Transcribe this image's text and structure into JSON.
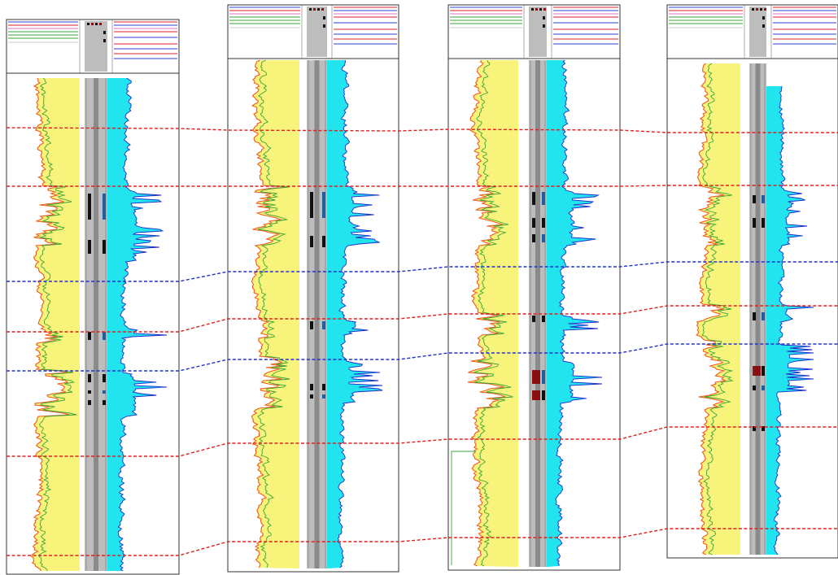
{
  "colors": {
    "gr_fill": "#f8f37a",
    "gr_curve": "#ee5a1c",
    "gr_baseline": "#3aa33a",
    "res_fill": "#22e4ee",
    "res_curve": "#1f2ccc",
    "depth_track": "#bdbdbd",
    "depth_track_dark": "#8a8a8a",
    "marker_red": "#e02020",
    "marker_blue": "#2233cc",
    "perf": "#111111",
    "perf_alt": "#8a1010",
    "header_red": "#e21c2c",
    "header_blue": "#2b3fd9",
    "header_green": "#3aa33a",
    "header_pink": "#e070c0"
  },
  "wells": [
    {
      "id": "well-1"
    },
    {
      "id": "well-2"
    },
    {
      "id": "well-3"
    },
    {
      "id": "well-4"
    }
  ],
  "correlations": [
    {
      "type": "red"
    },
    {
      "type": "red"
    },
    {
      "type": "blue"
    },
    {
      "type": "red"
    },
    {
      "type": "blue"
    },
    {
      "type": "red"
    },
    {
      "type": "red"
    }
  ]
}
